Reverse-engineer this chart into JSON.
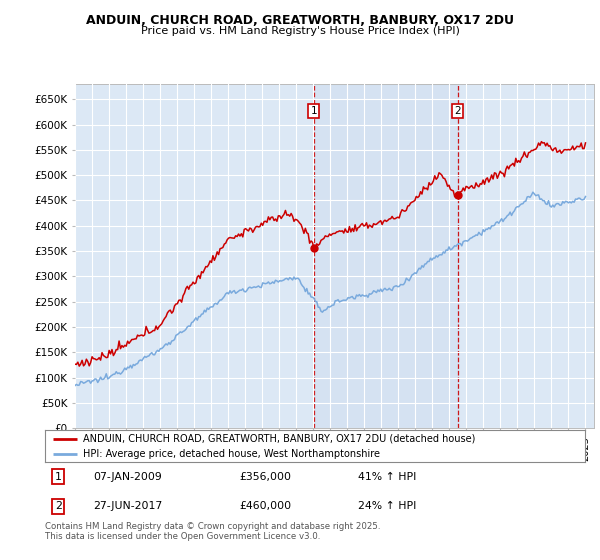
{
  "title": "ANDUIN, CHURCH ROAD, GREATWORTH, BANBURY, OX17 2DU",
  "subtitle": "Price paid vs. HM Land Registry's House Price Index (HPI)",
  "ylabel_ticks": [
    "£0",
    "£50K",
    "£100K",
    "£150K",
    "£200K",
    "£250K",
    "£300K",
    "£350K",
    "£400K",
    "£450K",
    "£500K",
    "£550K",
    "£600K",
    "£650K"
  ],
  "ytick_values": [
    0,
    50000,
    100000,
    150000,
    200000,
    250000,
    300000,
    350000,
    400000,
    450000,
    500000,
    550000,
    600000,
    650000
  ],
  "sale1_date": "07-JAN-2009",
  "sale1_price": 356000,
  "sale1_hpi": "41% ↑ HPI",
  "sale2_date": "27-JUN-2017",
  "sale2_price": 460000,
  "sale2_hpi": "24% ↑ HPI",
  "red_color": "#cc0000",
  "blue_color": "#7aaadd",
  "background_color": "#dce8f5",
  "grid_color": "#ffffff",
  "legend_label_red": "ANDUIN, CHURCH ROAD, GREATWORTH, BANBURY, OX17 2DU (detached house)",
  "legend_label_blue": "HPI: Average price, detached house, West Northamptonshire",
  "footer": "Contains HM Land Registry data © Crown copyright and database right 2025.\nThis data is licensed under the Open Government Licence v3.0.",
  "sale1_x": 2009.03,
  "sale2_x": 2017.5
}
